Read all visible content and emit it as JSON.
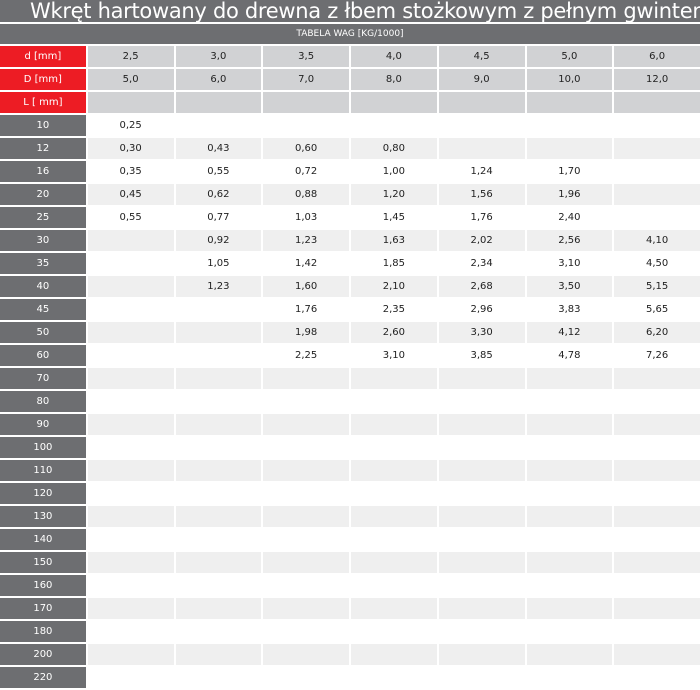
{
  "title": "Wkręt hartowany do drewna z łbem stożkowym z pełnym gwintem",
  "subtitle": "TABELA WAG [KG/1000]",
  "header_rows": [
    {
      "label": "d [mm]",
      "values": [
        "2,5",
        "3,0",
        "3,5",
        "4,0",
        "4,5",
        "5,0",
        "6,0"
      ]
    },
    {
      "label": "D [mm]",
      "values": [
        "5,0",
        "6,0",
        "7,0",
        "8,0",
        "9,0",
        "10,0",
        "12,0"
      ]
    },
    {
      "label": "L [ mm]",
      "values": [
        "",
        "",
        "",
        "",
        "",
        "",
        ""
      ]
    }
  ],
  "rows": [
    {
      "label": "10",
      "values": [
        "0,25",
        "",
        "",
        "",
        "",
        "",
        ""
      ]
    },
    {
      "label": "12",
      "values": [
        "0,30",
        "0,43",
        "0,60",
        "0,80",
        "",
        "",
        ""
      ]
    },
    {
      "label": "16",
      "values": [
        "0,35",
        "0,55",
        "0,72",
        "1,00",
        "1,24",
        "1,70",
        ""
      ]
    },
    {
      "label": "20",
      "values": [
        "0,45",
        "0,62",
        "0,88",
        "1,20",
        "1,56",
        "1,96",
        ""
      ]
    },
    {
      "label": "25",
      "values": [
        "0,55",
        "0,77",
        "1,03",
        "1,45",
        "1,76",
        "2,40",
        ""
      ]
    },
    {
      "label": "30",
      "values": [
        "",
        "0,92",
        "1,23",
        "1,63",
        "2,02",
        "2,56",
        "4,10"
      ]
    },
    {
      "label": "35",
      "values": [
        "",
        "1,05",
        "1,42",
        "1,85",
        "2,34",
        "3,10",
        "4,50"
      ]
    },
    {
      "label": "40",
      "values": [
        "",
        "1,23",
        "1,60",
        "2,10",
        "2,68",
        "3,50",
        "5,15"
      ]
    },
    {
      "label": "45",
      "values": [
        "",
        "",
        "1,76",
        "2,35",
        "2,96",
        "3,83",
        "5,65"
      ]
    },
    {
      "label": "50",
      "values": [
        "",
        "",
        "1,98",
        "2,60",
        "3,30",
        "4,12",
        "6,20"
      ]
    },
    {
      "label": "60",
      "values": [
        "",
        "",
        "2,25",
        "3,10",
        "3,85",
        "4,78",
        "7,26"
      ]
    },
    {
      "label": "70",
      "values": [
        "",
        "",
        "",
        "",
        "",
        "",
        ""
      ]
    },
    {
      "label": "80",
      "values": [
        "",
        "",
        "",
        "",
        "",
        "",
        ""
      ]
    },
    {
      "label": "90",
      "values": [
        "",
        "",
        "",
        "",
        "",
        "",
        ""
      ]
    },
    {
      "label": "100",
      "values": [
        "",
        "",
        "",
        "",
        "",
        "",
        ""
      ]
    },
    {
      "label": "110",
      "values": [
        "",
        "",
        "",
        "",
        "",
        "",
        ""
      ]
    },
    {
      "label": "120",
      "values": [
        "",
        "",
        "",
        "",
        "",
        "",
        ""
      ]
    },
    {
      "label": "130",
      "values": [
        "",
        "",
        "",
        "",
        "",
        "",
        ""
      ]
    },
    {
      "label": "140",
      "values": [
        "",
        "",
        "",
        "",
        "",
        "",
        ""
      ]
    },
    {
      "label": "150",
      "values": [
        "",
        "",
        "",
        "",
        "",
        "",
        ""
      ]
    },
    {
      "label": "160",
      "values": [
        "",
        "",
        "",
        "",
        "",
        "",
        ""
      ]
    },
    {
      "label": "170",
      "values": [
        "",
        "",
        "",
        "",
        "",
        "",
        ""
      ]
    },
    {
      "label": "180",
      "values": [
        "",
        "",
        "",
        "",
        "",
        "",
        ""
      ]
    },
    {
      "label": "200",
      "values": [
        "",
        "",
        "",
        "",
        "",
        "",
        ""
      ]
    },
    {
      "label": "220",
      "values": [
        "",
        "",
        "",
        "",
        "",
        "",
        ""
      ]
    }
  ]
}
